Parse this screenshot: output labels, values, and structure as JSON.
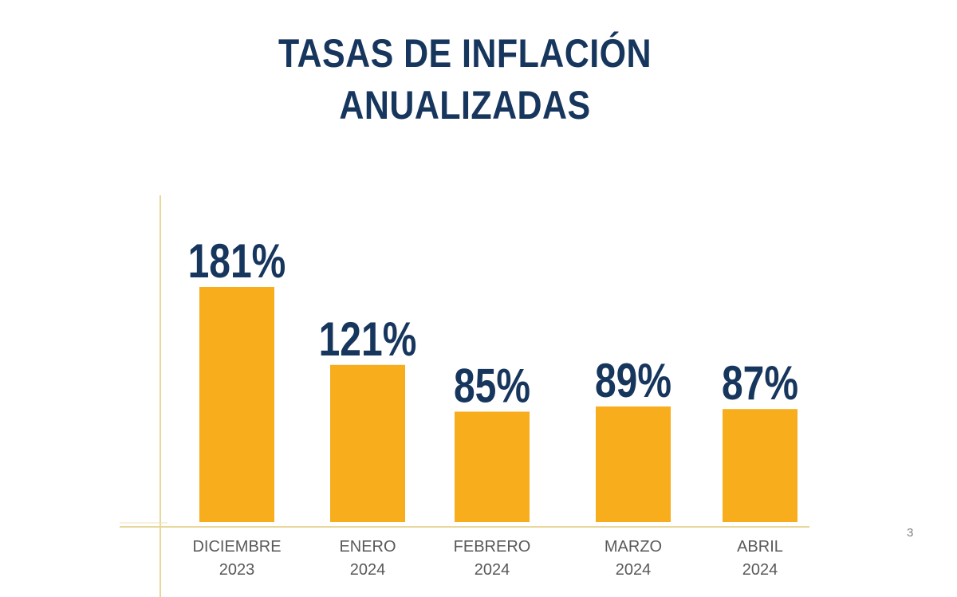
{
  "page_number": "3",
  "colors": {
    "bar": "#f8ad1d",
    "title": "#17365d",
    "value_label": "#17365d",
    "axis_line": "#e8d79a",
    "category_label": "#595959"
  },
  "chart_data": {
    "type": "bar",
    "title": [
      "TASAS DE INFLACIÓN",
      "ANUALIZADAS"
    ],
    "categories": [
      [
        "DICIEMBRE",
        "2023"
      ],
      [
        "ENERO",
        "2024"
      ],
      [
        "FEBRERO",
        "2024"
      ],
      [
        "MARZO",
        "2024"
      ],
      [
        "ABRIL",
        "2024"
      ]
    ],
    "values": [
      181,
      121,
      85,
      89,
      87
    ],
    "value_labels": [
      "181%",
      "121%",
      "85%",
      "89%",
      "87%"
    ],
    "xlabel": "",
    "ylabel": "",
    "ylim": [
      0,
      200
    ],
    "grid": false,
    "legend": "none"
  }
}
